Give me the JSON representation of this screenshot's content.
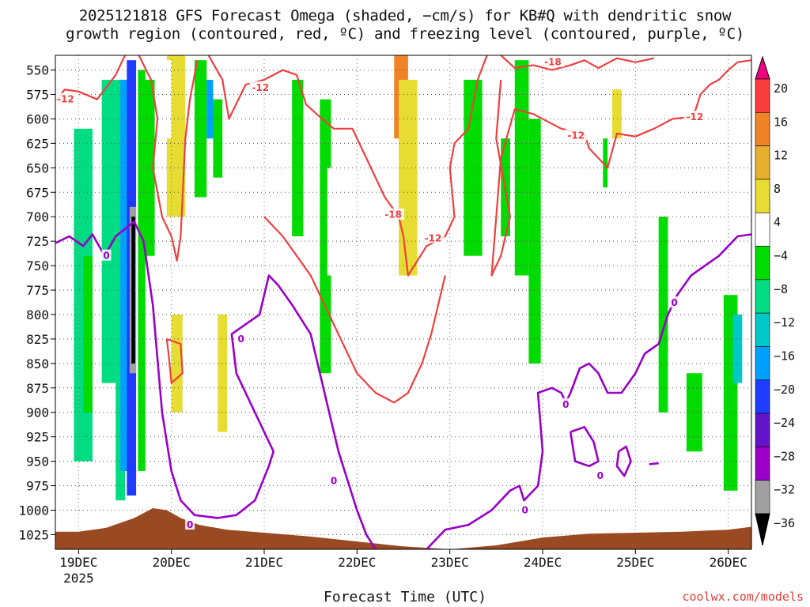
{
  "chart_data": {
    "type": "heatmap",
    "title_line1": "2025121818 GFS Forecast Omega (shaded, −cm/s) for KB#Q with dendritic snow",
    "title_line2": "growth region (contoured, red, ºC) and freezing level (contoured, purple, ºC)",
    "xlabel": "Forecast Time (UTC)",
    "credit": "coolwx.com/models",
    "x_ticks": [
      {
        "pos": 0.0,
        "label": "19DEC",
        "sublabel": "2025"
      },
      {
        "pos": 1.0,
        "label": "20DEC"
      },
      {
        "pos": 2.0,
        "label": "21DEC"
      },
      {
        "pos": 3.0,
        "label": "22DEC"
      },
      {
        "pos": 4.0,
        "label": "23DEC"
      },
      {
        "pos": 5.0,
        "label": "24DEC"
      },
      {
        "pos": 6.0,
        "label": "25DEC"
      },
      {
        "pos": 7.0,
        "label": "26DEC"
      }
    ],
    "xlim": [
      -0.25,
      7.25
    ],
    "ylim": [
      1040,
      535
    ],
    "y_ticks": [
      550,
      575,
      600,
      625,
      650,
      675,
      700,
      725,
      750,
      775,
      800,
      825,
      850,
      875,
      900,
      925,
      950,
      975,
      1000,
      1025
    ],
    "colorbar": {
      "levels": [
        -36,
        -32,
        -28,
        -24,
        -20,
        -16,
        -12,
        -8,
        -4,
        4,
        8,
        12,
        16,
        20
      ],
      "label_values": [
        "20",
        "16",
        "12",
        "8",
        "4",
        "−4",
        "−8",
        "−12",
        "−16",
        "−20",
        "−24",
        "−28",
        "−32",
        "−36"
      ],
      "colors": [
        "#000000",
        "#a0a0a0",
        "#9a00c8",
        "#6414c8",
        "#1e3cff",
        "#00a0ff",
        "#00c8c8",
        "#00dc82",
        "#00dc00",
        "#ffffff",
        "#e6dc32",
        "#e6af2d",
        "#f08228",
        "#fa3c3c",
        "#f00082"
      ]
    },
    "contour_colors": {
      "dgz": "#ef4040",
      "freezing": "#9a00c8",
      "terrain": "#9a4a22"
    },
    "contour_labels": [
      {
        "text": "-12",
        "x": -0.14,
        "p": 580,
        "c": "dgz"
      },
      {
        "text": "-12",
        "x": 1.96,
        "p": 568,
        "c": "dgz"
      },
      {
        "text": "-18",
        "x": 3.39,
        "p": 698,
        "c": "dgz"
      },
      {
        "text": "-12",
        "x": 3.82,
        "p": 722,
        "c": "dgz"
      },
      {
        "text": "-18",
        "x": 5.11,
        "p": 542,
        "c": "dgz"
      },
      {
        "text": "-12",
        "x": 5.36,
        "p": 617,
        "c": "dgz"
      },
      {
        "text": "-12",
        "x": 6.64,
        "p": 598,
        "c": "dgz"
      },
      {
        "text": "0",
        "x": 0.3,
        "p": 740,
        "c": "freezing"
      },
      {
        "text": "0",
        "x": 1.2,
        "p": 1015,
        "c": "freezing"
      },
      {
        "text": "0",
        "x": 1.75,
        "p": 825,
        "c": "freezing"
      },
      {
        "text": "0",
        "x": 2.75,
        "p": 970,
        "c": "freezing"
      },
      {
        "text": "0",
        "x": 4.81,
        "p": 1000,
        "c": "freezing"
      },
      {
        "text": "0",
        "x": 5.25,
        "p": 892,
        "c": "freezing"
      },
      {
        "text": "0",
        "x": 5.62,
        "p": 965,
        "c": "freezing"
      },
      {
        "text": "0",
        "x": 6.42,
        "p": 788,
        "c": "freezing"
      }
    ],
    "dgz_contours": [
      [
        [
          -0.25,
          582
        ],
        [
          -0.15,
          570
        ],
        [
          0.0,
          572
        ],
        [
          0.2,
          580
        ],
        [
          0.4,
          555
        ],
        [
          0.5,
          535
        ]
      ],
      [
        [
          0.65,
          535
        ],
        [
          0.78,
          560
        ],
        [
          0.85,
          600
        ],
        [
          0.8,
          650
        ],
        [
          0.9,
          700
        ],
        [
          1.0,
          720
        ],
        [
          1.06,
          745
        ],
        [
          1.1,
          720
        ],
        [
          1.15,
          620
        ],
        [
          1.2,
          580
        ],
        [
          1.28,
          540
        ]
      ],
      [
        [
          1.4,
          535
        ],
        [
          1.55,
          560
        ],
        [
          1.62,
          600
        ],
        [
          1.8,
          565
        ],
        [
          2.0,
          560
        ],
        [
          2.2,
          550
        ],
        [
          2.35,
          555
        ],
        [
          2.45,
          585
        ],
        [
          2.6,
          598
        ],
        [
          2.75,
          610
        ],
        [
          2.95,
          610
        ],
        [
          3.1,
          640
        ],
        [
          3.3,
          680
        ],
        [
          3.45,
          700
        ],
        [
          3.5,
          720
        ],
        [
          3.55,
          760
        ],
        [
          3.75,
          730
        ],
        [
          3.95,
          720
        ],
        [
          4.05,
          700
        ],
        [
          4.0,
          650
        ],
        [
          4.05,
          625
        ],
        [
          4.2,
          610
        ],
        [
          4.3,
          560
        ],
        [
          4.4,
          535
        ]
      ],
      [
        [
          4.55,
          535
        ],
        [
          4.7,
          548
        ],
        [
          4.9,
          545
        ],
        [
          5.1,
          550
        ],
        [
          5.3,
          545
        ],
        [
          5.45,
          540
        ],
        [
          5.6,
          548
        ],
        [
          5.8,
          538
        ],
        [
          6.0,
          542
        ],
        [
          6.2,
          538
        ]
      ],
      [
        [
          4.55,
          560
        ],
        [
          4.5,
          620
        ],
        [
          4.65,
          700
        ],
        [
          4.55,
          740
        ],
        [
          4.45,
          760
        ],
        [
          4.55,
          640
        ],
        [
          4.7,
          590
        ],
        [
          4.9,
          595
        ],
        [
          5.2,
          610
        ],
        [
          5.45,
          615
        ],
        [
          5.5,
          630
        ],
        [
          5.7,
          650
        ],
        [
          5.8,
          615
        ],
        [
          6.0,
          618
        ],
        [
          6.2,
          610
        ],
        [
          6.4,
          600
        ],
        [
          6.6,
          598
        ],
        [
          6.65,
          590
        ],
        [
          6.7,
          575
        ],
        [
          6.8,
          565
        ],
        [
          6.9,
          560
        ],
        [
          7.0,
          550
        ],
        [
          7.1,
          542
        ],
        [
          7.25,
          540
        ]
      ],
      [
        [
          0.95,
          825
        ],
        [
          1.1,
          830
        ],
        [
          1.12,
          860
        ],
        [
          1.0,
          870
        ],
        [
          0.97,
          840
        ],
        [
          0.95,
          825
        ]
      ],
      [
        [
          2.0,
          700
        ],
        [
          2.2,
          720
        ],
        [
          2.5,
          760
        ],
        [
          2.7,
          800
        ],
        [
          2.85,
          830
        ],
        [
          3.0,
          860
        ],
        [
          3.2,
          880
        ],
        [
          3.4,
          890
        ],
        [
          3.55,
          880
        ],
        [
          3.7,
          850
        ],
        [
          3.8,
          820
        ],
        [
          3.9,
          780
        ],
        [
          3.95,
          760
        ]
      ]
    ],
    "freezing_contours": [
      [
        [
          -0.25,
          727
        ],
        [
          -0.1,
          720
        ],
        [
          0.05,
          730
        ],
        [
          0.15,
          718
        ],
        [
          0.28,
          740
        ],
        [
          0.4,
          720
        ],
        [
          0.6,
          705
        ],
        [
          0.7,
          725
        ],
        [
          0.8,
          790
        ],
        [
          0.9,
          900
        ],
        [
          1.0,
          960
        ],
        [
          1.1,
          990
        ],
        [
          1.25,
          1005
        ],
        [
          1.5,
          1008
        ],
        [
          1.7,
          1005
        ],
        [
          1.9,
          990
        ],
        [
          2.05,
          955
        ],
        [
          2.1,
          940
        ],
        [
          2.0,
          920
        ],
        [
          1.85,
          890
        ],
        [
          1.7,
          860
        ],
        [
          1.65,
          820
        ],
        [
          1.8,
          810
        ],
        [
          1.95,
          800
        ],
        [
          2.05,
          760
        ],
        [
          2.15,
          770
        ],
        [
          2.3,
          790
        ],
        [
          2.5,
          820
        ],
        [
          2.6,
          860
        ],
        [
          2.7,
          900
        ],
        [
          2.8,
          940
        ],
        [
          2.9,
          970
        ],
        [
          3.0,
          1000
        ],
        [
          3.1,
          1025
        ],
        [
          3.2,
          1040
        ]
      ],
      [
        [
          3.75,
          1040
        ],
        [
          3.95,
          1020
        ],
        [
          4.2,
          1015
        ],
        [
          4.45,
          1000
        ],
        [
          4.65,
          980
        ],
        [
          4.75,
          975
        ],
        [
          4.8,
          990
        ],
        [
          4.95,
          975
        ],
        [
          5.0,
          940
        ],
        [
          4.95,
          880
        ],
        [
          5.1,
          875
        ],
        [
          5.2,
          880
        ],
        [
          5.25,
          890
        ],
        [
          5.3,
          880
        ],
        [
          5.4,
          855
        ],
        [
          5.5,
          850
        ],
        [
          5.6,
          860
        ],
        [
          5.7,
          880
        ],
        [
          5.85,
          880
        ],
        [
          6.0,
          860
        ],
        [
          6.1,
          840
        ],
        [
          6.25,
          830
        ],
        [
          6.35,
          800
        ],
        [
          6.45,
          780
        ],
        [
          6.6,
          760
        ],
        [
          6.75,
          750
        ],
        [
          6.9,
          740
        ],
        [
          7.0,
          730
        ],
        [
          7.1,
          720
        ],
        [
          7.25,
          718
        ]
      ],
      [
        [
          5.3,
          920
        ],
        [
          5.45,
          915
        ],
        [
          5.55,
          930
        ],
        [
          5.6,
          950
        ],
        [
          5.5,
          955
        ],
        [
          5.35,
          950
        ],
        [
          5.3,
          920
        ]
      ],
      [
        [
          5.82,
          940
        ],
        [
          5.9,
          935
        ],
        [
          5.95,
          950
        ],
        [
          5.88,
          965
        ],
        [
          5.8,
          955
        ],
        [
          5.82,
          940
        ]
      ],
      [
        [
          6.15,
          953
        ],
        [
          6.25,
          952
        ]
      ]
    ],
    "terrain": [
      [
        -0.25,
        1022
      ],
      [
        0.0,
        1022
      ],
      [
        0.3,
        1018
      ],
      [
        0.6,
        1008
      ],
      [
        0.8,
        998
      ],
      [
        0.95,
        1000
      ],
      [
        1.1,
        1008
      ],
      [
        1.3,
        1015
      ],
      [
        1.6,
        1020
      ],
      [
        2.0,
        1023
      ],
      [
        2.5,
        1027
      ],
      [
        3.0,
        1032
      ],
      [
        3.5,
        1037
      ],
      [
        4.0,
        1040
      ],
      [
        4.5,
        1036
      ],
      [
        5.0,
        1028
      ],
      [
        5.5,
        1024
      ],
      [
        6.0,
        1023
      ],
      [
        6.5,
        1022
      ],
      [
        7.0,
        1020
      ],
      [
        7.25,
        1017
      ]
    ],
    "omega_cells": [
      {
        "x0": -0.05,
        "x1": 0.15,
        "p0": 610,
        "p1": 950,
        "level": 7
      },
      {
        "x0": 0.05,
        "x1": 0.15,
        "p0": 740,
        "p1": 900,
        "level": 8
      },
      {
        "x0": 0.25,
        "x1": 0.4,
        "p0": 560,
        "p1": 870,
        "level": 7
      },
      {
        "x0": 0.4,
        "x1": 0.5,
        "p0": 560,
        "p1": 990,
        "level": 7
      },
      {
        "x0": 0.45,
        "x1": 0.55,
        "p0": 560,
        "p1": 960,
        "level": 5
      },
      {
        "x0": 0.52,
        "x1": 0.62,
        "p0": 540,
        "p1": 985,
        "level": 4
      },
      {
        "x0": 0.55,
        "x1": 0.62,
        "p0": 690,
        "p1": 860,
        "level": 1
      },
      {
        "x0": 0.57,
        "x1": 0.61,
        "p0": 700,
        "p1": 850,
        "level": 0
      },
      {
        "x0": 0.64,
        "x1": 0.72,
        "p0": 550,
        "p1": 960,
        "level": 8
      },
      {
        "x0": 0.7,
        "x1": 0.82,
        "p0": 560,
        "p1": 740,
        "level": 8
      },
      {
        "x0": 0.95,
        "x1": 1.15,
        "p0": 535,
        "p1": 700,
        "level": 10
      },
      {
        "x0": 0.9,
        "x1": 1.0,
        "p0": 540,
        "p1": 620,
        "level": 9
      },
      {
        "x0": 1.25,
        "x1": 1.38,
        "p0": 540,
        "p1": 680,
        "level": 8
      },
      {
        "x0": 1.38,
        "x1": 1.45,
        "p0": 560,
        "p1": 620,
        "level": 5
      },
      {
        "x0": 1.45,
        "x1": 1.55,
        "p0": 580,
        "p1": 660,
        "level": 8
      },
      {
        "x0": 1.4,
        "x1": 1.55,
        "p0": 760,
        "p1": 950,
        "level": 9
      },
      {
        "x0": 1.5,
        "x1": 1.6,
        "p0": 800,
        "p1": 920,
        "level": 10
      },
      {
        "x0": 1.0,
        "x1": 1.12,
        "p0": 800,
        "p1": 900,
        "level": 10
      },
      {
        "x0": 2.3,
        "x1": 2.42,
        "p0": 560,
        "p1": 720,
        "level": 8
      },
      {
        "x0": 2.6,
        "x1": 2.72,
        "p0": 580,
        "p1": 860,
        "level": 8
      },
      {
        "x0": 2.68,
        "x1": 2.78,
        "p0": 650,
        "p1": 760,
        "level": 9
      },
      {
        "x0": 2.82,
        "x1": 2.95,
        "p0": 540,
        "p1": 780,
        "level": 9
      },
      {
        "x0": 3.0,
        "x1": 3.15,
        "p0": 570,
        "p1": 940,
        "level": 9
      },
      {
        "x0": 3.15,
        "x1": 3.3,
        "p0": 540,
        "p1": 720,
        "level": 9
      },
      {
        "x0": 3.4,
        "x1": 3.55,
        "p0": 535,
        "p1": 620,
        "level": 12
      },
      {
        "x0": 3.45,
        "x1": 3.65,
        "p0": 560,
        "p1": 760,
        "level": 10
      },
      {
        "x0": 3.65,
        "x1": 3.85,
        "p0": 700,
        "p1": 900,
        "level": 9
      },
      {
        "x0": 3.8,
        "x1": 3.95,
        "p0": 560,
        "p1": 650,
        "level": 9
      },
      {
        "x0": 4.15,
        "x1": 4.35,
        "p0": 560,
        "p1": 740,
        "level": 8
      },
      {
        "x0": 4.35,
        "x1": 4.48,
        "p0": 535,
        "p1": 760,
        "level": 9
      },
      {
        "x0": 4.55,
        "x1": 4.65,
        "p0": 620,
        "p1": 720,
        "level": 8
      },
      {
        "x0": 4.7,
        "x1": 4.85,
        "p0": 540,
        "p1": 760,
        "level": 8
      },
      {
        "x0": 4.85,
        "x1": 4.98,
        "p0": 600,
        "p1": 850,
        "level": 8
      },
      {
        "x0": 5.4,
        "x1": 5.5,
        "p0": 560,
        "p1": 700,
        "level": 9
      },
      {
        "x0": 5.55,
        "x1": 5.65,
        "p0": 620,
        "p1": 760,
        "level": 9
      },
      {
        "x0": 5.65,
        "x1": 5.75,
        "p0": 620,
        "p1": 670,
        "level": 8
      },
      {
        "x0": 5.7,
        "x1": 5.85,
        "p0": 560,
        "p1": 800,
        "level": 9
      },
      {
        "x0": 5.75,
        "x1": 5.85,
        "p0": 570,
        "p1": 620,
        "level": 10
      },
      {
        "x0": 5.55,
        "x1": 5.62,
        "p0": 880,
        "p1": 960,
        "level": 9
      },
      {
        "x0": 6.25,
        "x1": 6.35,
        "p0": 700,
        "p1": 900,
        "level": 8
      },
      {
        "x0": 6.4,
        "x1": 6.5,
        "p0": 700,
        "p1": 780,
        "level": 9
      },
      {
        "x0": 6.55,
        "x1": 6.72,
        "p0": 860,
        "p1": 940,
        "level": 8
      },
      {
        "x0": 6.75,
        "x1": 6.85,
        "p0": 710,
        "p1": 780,
        "level": 9
      },
      {
        "x0": 6.95,
        "x1": 7.1,
        "p0": 780,
        "p1": 980,
        "level": 8
      },
      {
        "x0": 7.05,
        "x1": 7.15,
        "p0": 800,
        "p1": 870,
        "level": 6
      },
      {
        "x0": 7.05,
        "x1": 7.25,
        "p0": 650,
        "p1": 720,
        "level": 9
      },
      {
        "x0": 7.1,
        "x1": 7.2,
        "p0": 560,
        "p1": 580,
        "level": 9
      }
    ]
  }
}
